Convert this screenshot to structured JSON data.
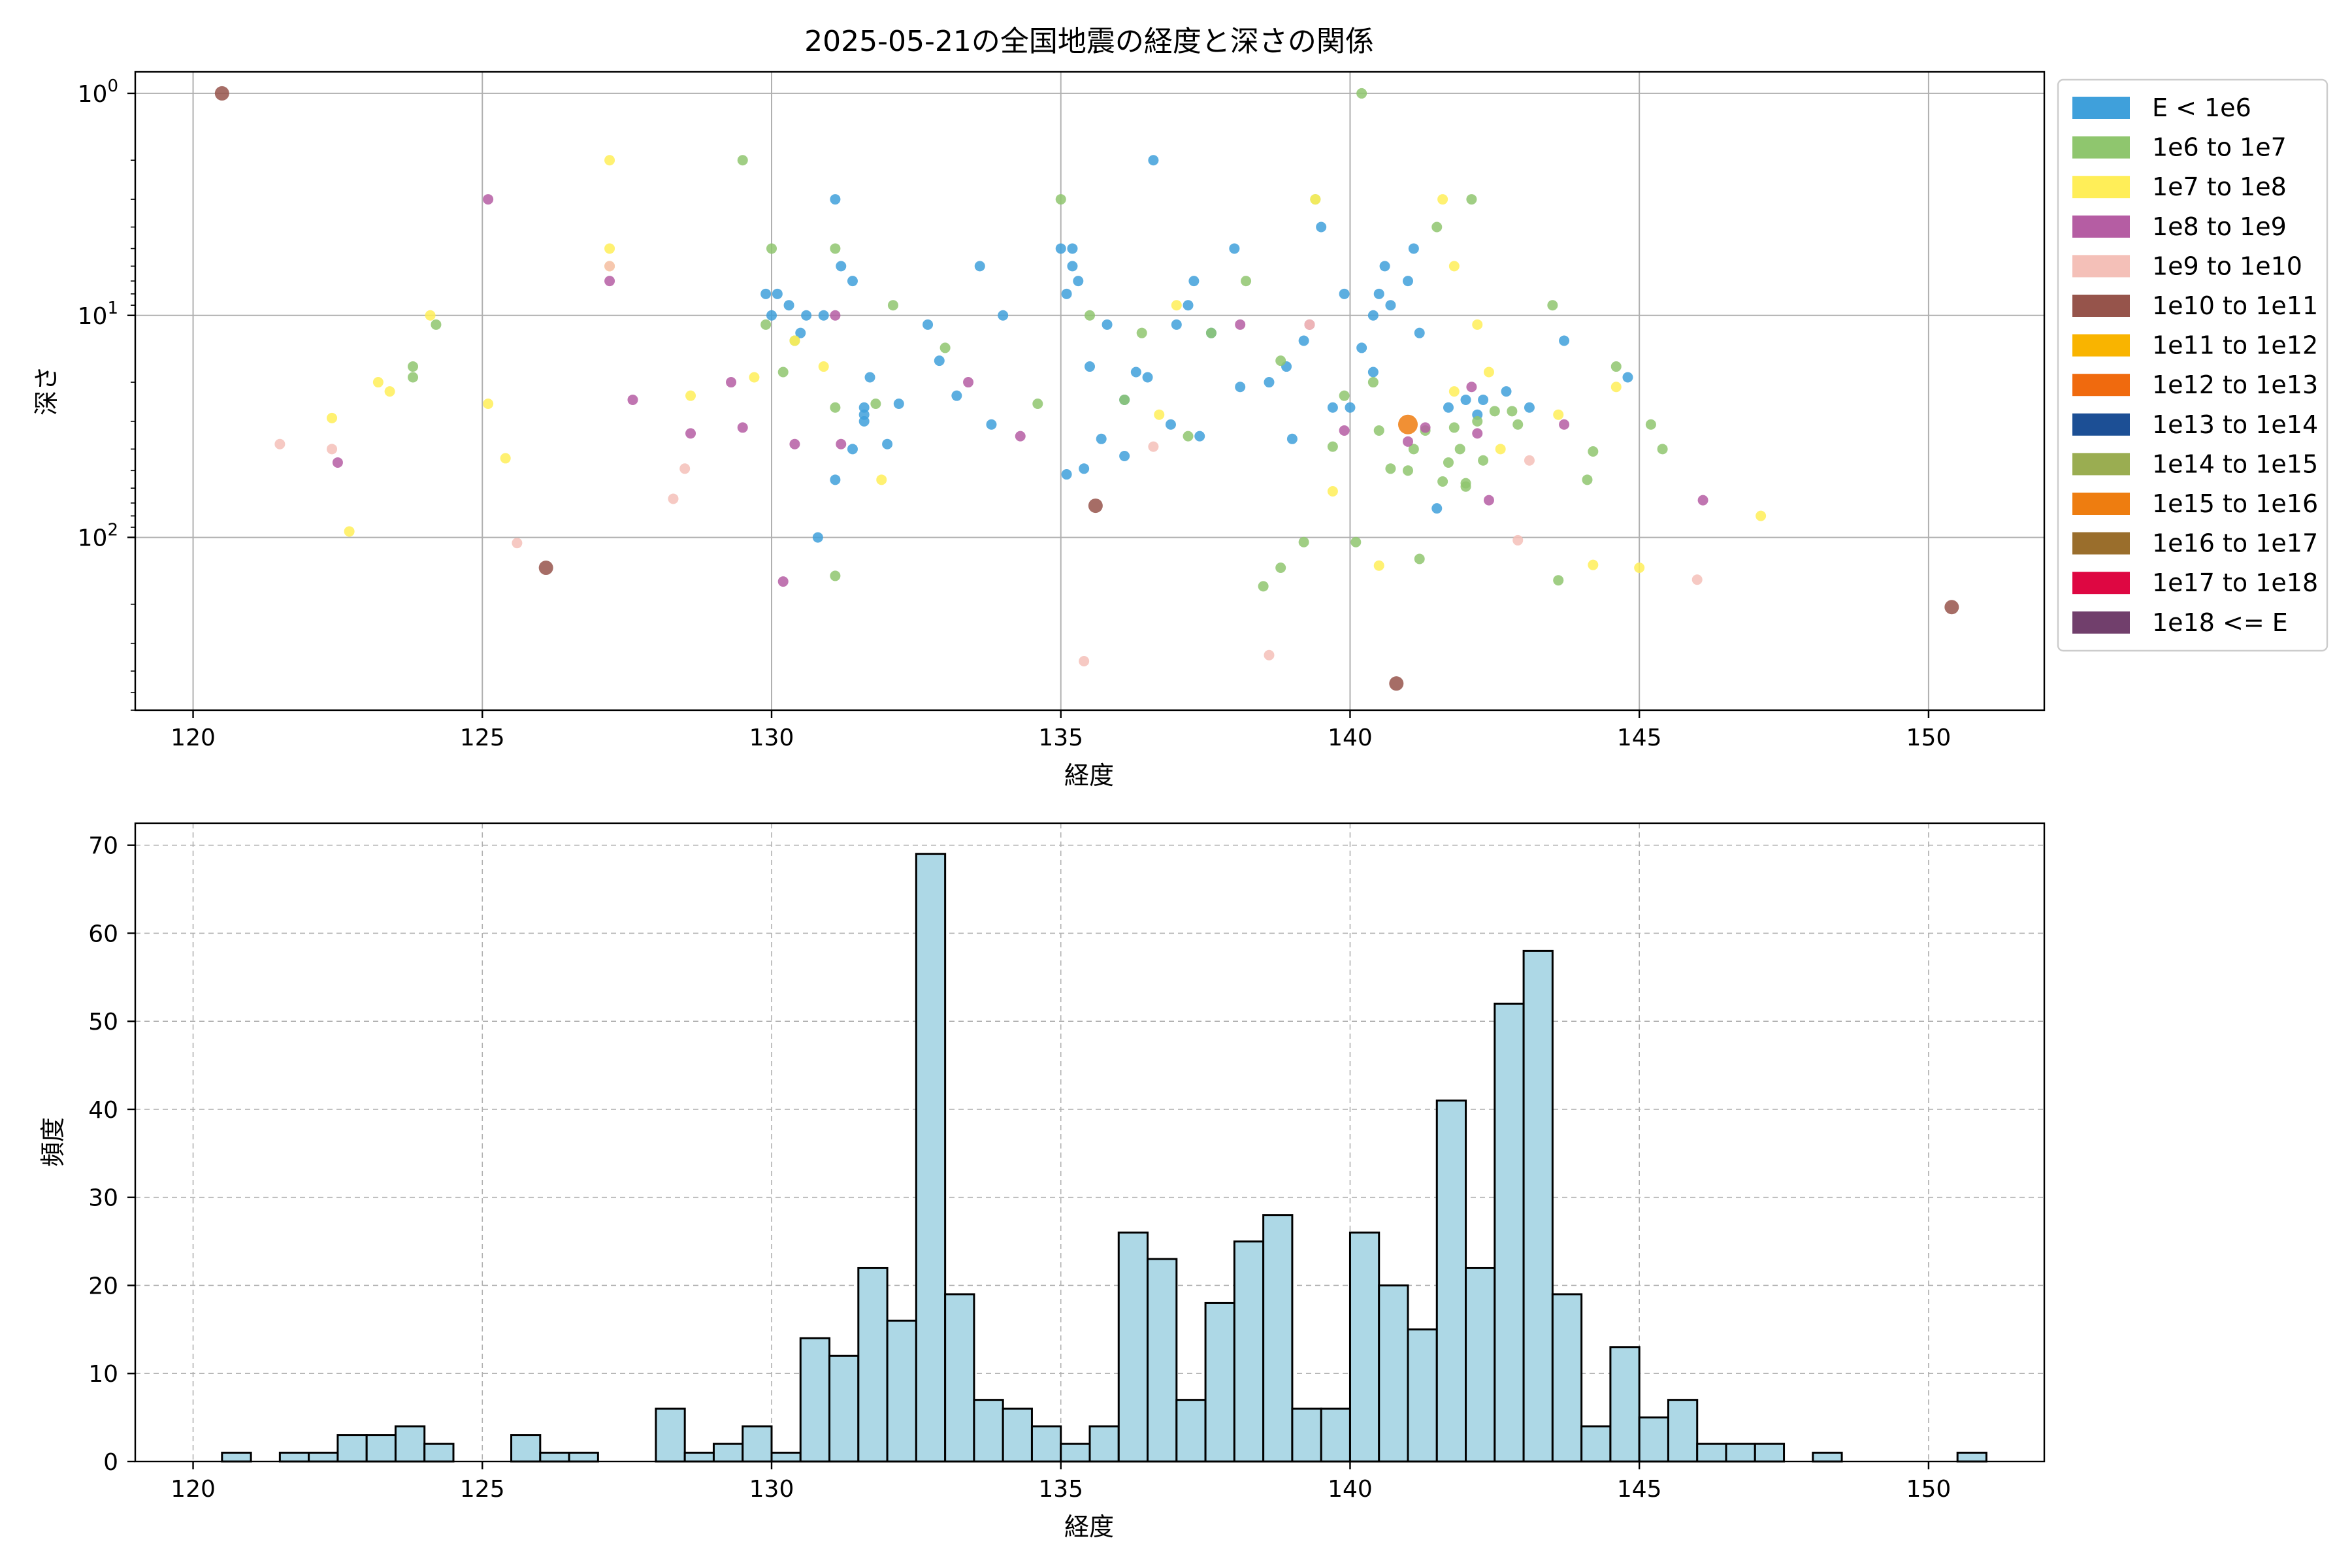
{
  "chart_data": [
    {
      "type": "scatter",
      "title": "2025-05-21の全国地震の経度と深さの関係",
      "xlabel": "経度",
      "ylabel": "深さ",
      "xlim": [
        119,
        152
      ],
      "ylim": [
        600,
        0.8
      ],
      "yscale": "log",
      "y_inverted": true,
      "x_ticks": [
        120,
        125,
        130,
        135,
        140,
        145,
        150
      ],
      "y_ticks": [
        {
          "value": 1,
          "label_base": "10",
          "label_exp": "0"
        },
        {
          "value": 10,
          "label_base": "10",
          "label_exp": "1"
        },
        {
          "value": 100,
          "label_base": "10",
          "label_exp": "2"
        }
      ],
      "grid": true,
      "legend_position": "outside-right-top",
      "legend": [
        {
          "label": "E < 1e6",
          "color": "#3fa0db"
        },
        {
          "label": "1e6 to 1e7",
          "color": "#8fc66e"
        },
        {
          "label": "1e7 to 1e8",
          "color": "#ffee58"
        },
        {
          "label": "1e8 to 1e9",
          "color": "#b55da3"
        },
        {
          "label": "1e9 to 1e10",
          "color": "#f4c0b8"
        },
        {
          "label": "1e10 to 1e11",
          "color": "#96544b"
        },
        {
          "label": "1e11 to 1e12",
          "color": "#f9b400"
        },
        {
          "label": "1e12 to 1e13",
          "color": "#f06a0e"
        },
        {
          "label": "1e13 to 1e14",
          "color": "#1c4f95"
        },
        {
          "label": "1e14 to 1e15",
          "color": "#9aad51"
        },
        {
          "label": "1e15 to 1e16",
          "color": "#ee7d10"
        },
        {
          "label": "1e16 to 1e17",
          "color": "#9a6e2c"
        },
        {
          "label": "1e17 to 1e18",
          "color": "#de0742"
        },
        {
          "label": "1e18 <= E",
          "color": "#713f6c"
        }
      ],
      "series": [
        {
          "category": 0,
          "points": [
            [
              131.1,
              3
            ],
            [
              136.6,
              2
            ],
            [
              131.2,
              6
            ],
            [
              134.0,
              10
            ],
            [
              135.1,
              8
            ],
            [
              135.2,
              5
            ],
            [
              137.0,
              11
            ],
            [
              137.3,
              7
            ],
            [
              138.0,
              5
            ],
            [
              139.5,
              4
            ],
            [
              139.9,
              8
            ],
            [
              140.4,
              10
            ],
            [
              140.7,
              9
            ],
            [
              141.1,
              5
            ],
            [
              141.2,
              12
            ],
            [
              142.0,
              24
            ],
            [
              143.7,
              13
            ],
            [
              130.1,
              8
            ],
            [
              130.5,
              12
            ],
            [
              131.7,
              19
            ],
            [
              132.2,
              25
            ],
            [
              135.5,
              17
            ],
            [
              136.1,
              24
            ],
            [
              136.9,
              31
            ],
            [
              137.6,
              12
            ],
            [
              138.1,
              21
            ],
            [
              139.0,
              36
            ],
            [
              139.7,
              26
            ],
            [
              140.4,
              18
            ],
            [
              141.7,
              26
            ],
            [
              142.2,
              28
            ],
            [
              142.7,
              22
            ],
            [
              131.6,
              26
            ],
            [
              131.6,
              28
            ],
            [
              131.6,
              30
            ],
            [
              135.0,
              5
            ],
            [
              135.2,
              6
            ],
            [
              135.3,
              7
            ],
            [
              140.5,
              8
            ],
            [
              140.6,
              6
            ],
            [
              130.8,
              100
            ],
            [
              131.1,
              55
            ],
            [
              135.4,
              49
            ],
            [
              131.4,
              7
            ],
            [
              133.6,
              6
            ],
            [
              138.6,
              20
            ],
            [
              130.3,
              9
            ],
            [
              130.9,
              10
            ],
            [
              136.3,
              18
            ],
            [
              135.8,
              11
            ],
            [
              133.2,
              23
            ],
            [
              132.7,
              11
            ],
            [
              129.9,
              8
            ],
            [
              130.0,
              10
            ],
            [
              132.9,
              16
            ],
            [
              135.1,
              52
            ],
            [
              137.4,
              35
            ],
            [
              137.2,
              9
            ],
            [
              140.2,
              14
            ],
            [
              141.5,
              74
            ],
            [
              135.7,
              36
            ],
            [
              136.1,
              43
            ],
            [
              144.8,
              19
            ],
            [
              143.1,
              26
            ],
            [
              130.6,
              10
            ],
            [
              138.9,
              17
            ],
            [
              133.8,
              31
            ],
            [
              141.0,
              7
            ],
            [
              140.0,
              26
            ],
            [
              139.2,
              13
            ],
            [
              132.0,
              38
            ],
            [
              131.4,
              40
            ],
            [
              142.3,
              24
            ],
            [
              136.5,
              19
            ]
          ]
        },
        {
          "category": 1,
          "points": [
            [
              129.5,
              2
            ],
            [
              140.2,
              1
            ],
            [
              135.0,
              3
            ],
            [
              142.1,
              3
            ],
            [
              139.4,
              3
            ],
            [
              141.5,
              4
            ],
            [
              138.2,
              7
            ],
            [
              136.4,
              12
            ],
            [
              133.0,
              14
            ],
            [
              132.1,
              9
            ],
            [
              131.8,
              25
            ],
            [
              142.9,
              31
            ],
            [
              144.2,
              41
            ],
            [
              145.4,
              40
            ],
            [
              144.6,
              17
            ],
            [
              143.5,
              9
            ],
            [
              140.7,
              49
            ],
            [
              141.6,
              56
            ],
            [
              142.0,
              59
            ],
            [
              141.1,
              40
            ],
            [
              141.8,
              32
            ],
            [
              140.5,
              33
            ],
            [
              139.9,
              23
            ],
            [
              138.8,
              137
            ],
            [
              138.5,
              166
            ],
            [
              139.2,
              105
            ],
            [
              140.1,
              105
            ],
            [
              141.2,
              125
            ],
            [
              143.6,
              156
            ],
            [
              131.1,
              149
            ],
            [
              131.1,
              26
            ],
            [
              130.0,
              5
            ],
            [
              130.2,
              18
            ],
            [
              131.1,
              5
            ],
            [
              124.2,
              11
            ],
            [
              123.8,
              17
            ],
            [
              123.8,
              19
            ],
            [
              134.6,
              25
            ],
            [
              137.2,
              35
            ],
            [
              138.8,
              16
            ],
            [
              142.8,
              27
            ],
            [
              141.3,
              33
            ],
            [
              141.7,
              46
            ],
            [
              142.0,
              57
            ],
            [
              136.1,
              24
            ],
            [
              130.4,
              13
            ],
            [
              129.9,
              11
            ],
            [
              135.5,
              10
            ],
            [
              137.6,
              12
            ],
            [
              140.4,
              20
            ],
            [
              141.0,
              50
            ],
            [
              142.3,
              45
            ],
            [
              142.5,
              27
            ],
            [
              141.9,
              40
            ],
            [
              142.2,
              30
            ],
            [
              139.7,
              39
            ],
            [
              144.1,
              55
            ],
            [
              145.2,
              31
            ]
          ]
        },
        {
          "category": 2,
          "points": [
            [
              127.2,
              2
            ],
            [
              127.2,
              5
            ],
            [
              127.2,
              6
            ],
            [
              124.1,
              10
            ],
            [
              123.2,
              20
            ],
            [
              123.4,
              22
            ],
            [
              122.4,
              29
            ],
            [
              125.1,
              25
            ],
            [
              125.4,
              44
            ],
            [
              128.6,
              23
            ],
            [
              122.7,
              94
            ],
            [
              129.7,
              19
            ],
            [
              130.4,
              13
            ],
            [
              130.9,
              17
            ],
            [
              131.9,
              55
            ],
            [
              136.7,
              28
            ],
            [
              137.0,
              9
            ],
            [
              139.4,
              3
            ],
            [
              141.6,
              3
            ],
            [
              141.8,
              6
            ],
            [
              142.2,
              11
            ],
            [
              141.8,
              22
            ],
            [
              142.4,
              18
            ],
            [
              140.5,
              134
            ],
            [
              139.7,
              62
            ],
            [
              142.6,
              40
            ],
            [
              143.6,
              28
            ],
            [
              144.2,
              133
            ],
            [
              144.6,
              21
            ],
            [
              145.0,
              137
            ],
            [
              147.1,
              80
            ]
          ]
        },
        {
          "category": 3,
          "points": [
            [
              125.1,
              3
            ],
            [
              127.2,
              7
            ],
            [
              122.5,
              46
            ],
            [
              127.6,
              24
            ],
            [
              128.6,
              34
            ],
            [
              129.5,
              32
            ],
            [
              130.4,
              38
            ],
            [
              130.2,
              158
            ],
            [
              131.1,
              10
            ],
            [
              138.1,
              11
            ],
            [
              141.3,
              32
            ],
            [
              142.1,
              21
            ],
            [
              142.4,
              68
            ],
            [
              143.7,
              31
            ],
            [
              146.1,
              68
            ],
            [
              129.3,
              20
            ],
            [
              131.2,
              38
            ],
            [
              133.4,
              20
            ],
            [
              139.3,
              11
            ],
            [
              139.9,
              33
            ],
            [
              142.2,
              34
            ],
            [
              134.3,
              35
            ],
            [
              141.0,
              37
            ]
          ]
        },
        {
          "category": 4,
          "points": [
            [
              121.5,
              38
            ],
            [
              122.4,
              40
            ],
            [
              125.6,
              106
            ],
            [
              128.3,
              67
            ],
            [
              128.5,
              49
            ],
            [
              135.4,
              361
            ],
            [
              136.6,
              39
            ],
            [
              138.6,
              339
            ],
            [
              142.9,
              103
            ],
            [
              143.1,
              45
            ],
            [
              146.0,
              155
            ],
            [
              127.2,
              6
            ],
            [
              139.3,
              11
            ]
          ]
        },
        {
          "category": 5,
          "points": [
            [
              120.5,
              1.0
            ],
            [
              126.1,
              137
            ],
            [
              135.6,
              72
            ],
            [
              140.8,
              455
            ],
            [
              150.4,
              206
            ]
          ]
        },
        {
          "category": 10,
          "points": [
            [
              141.0,
              31
            ]
          ]
        }
      ]
    },
    {
      "type": "bar",
      "subtype": "histogram",
      "title": "",
      "xlabel": "経度",
      "ylabel": "頻度",
      "xlim": [
        119,
        152
      ],
      "ylim": [
        0,
        72.5
      ],
      "x_ticks": [
        120,
        125,
        130,
        135,
        140,
        145,
        150
      ],
      "y_ticks": [
        0,
        10,
        20,
        30,
        40,
        50,
        60,
        70
      ],
      "grid": true,
      "bin_start": 120.5,
      "bin_width": 0.5,
      "values": [
        1,
        0,
        1,
        1,
        3,
        3,
        4,
        2,
        0,
        0,
        3,
        1,
        1,
        0,
        0,
        6,
        1,
        2,
        4,
        1,
        14,
        12,
        22,
        16,
        69,
        19,
        7,
        6,
        4,
        2,
        4,
        26,
        23,
        7,
        18,
        25,
        28,
        6,
        6,
        26,
        20,
        15,
        41,
        22,
        52,
        58,
        19,
        4,
        13,
        5,
        7,
        2,
        2,
        2,
        0,
        1,
        0,
        0,
        0,
        0,
        1
      ]
    }
  ]
}
